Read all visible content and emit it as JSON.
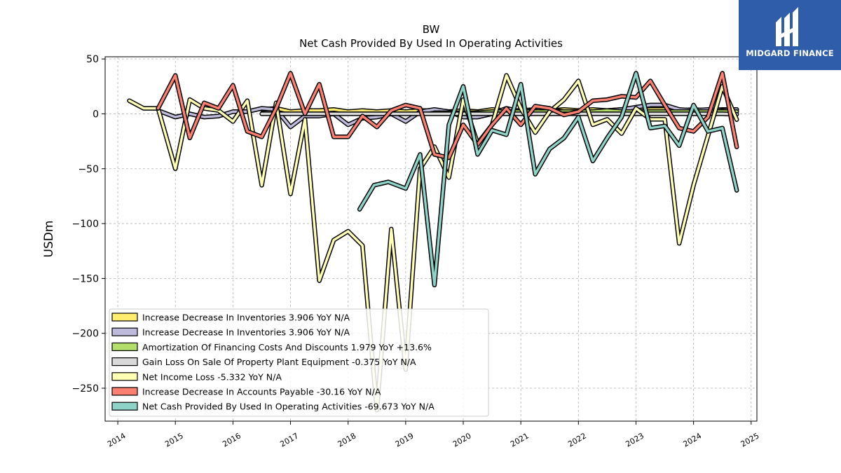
{
  "brand": {
    "name": "MIDGARD FINANCE",
    "bg_color": "#2f5daa"
  },
  "chart_data": {
    "type": "line",
    "title": "BW",
    "subtitle": "Net Cash Provided By Used In Operating Activities",
    "ylabel": "USDm",
    "xlabel": "",
    "ylim": [
      -280,
      52
    ],
    "xlim": [
      2013.78,
      2025.1
    ],
    "x_ticks": [
      2014,
      2015,
      2016,
      2017,
      2018,
      2019,
      2020,
      2021,
      2022,
      2023,
      2024,
      2025
    ],
    "y_ticks": [
      50,
      0,
      -50,
      -100,
      -150,
      -200,
      -250
    ],
    "grid": true,
    "legend_position": "lower-left",
    "series": [
      {
        "name": "Increase Decrease In Inventories  3.906 YoY N/A",
        "color": "#ffed6f",
        "x": [
          2016.5,
          2016.75,
          2017.0,
          2017.25,
          2017.5,
          2017.75,
          2018.0,
          2018.25,
          2018.5,
          2018.75,
          2019.0,
          2019.25,
          2019.5,
          2019.75,
          2020.0,
          2020.25,
          2020.5,
          2020.75,
          2021.0,
          2021.25,
          2021.5,
          2021.75,
          2022.0,
          2022.25,
          2022.5,
          2022.75,
          2023.0,
          2023.25,
          2023.5,
          2023.75,
          2024.0,
          2024.25,
          2024.5,
          2024.75
        ],
        "y": [
          4,
          5,
          2,
          3,
          3,
          4,
          2,
          3,
          2,
          3,
          2,
          3,
          3,
          2,
          3,
          2,
          4,
          3,
          3,
          4,
          3,
          4,
          3,
          4,
          3,
          4,
          3,
          4,
          4,
          3,
          4,
          3,
          4,
          3.9
        ]
      },
      {
        "name": "Increase Decrease In Inventories  3.906 YoY N/A",
        "color": "#bebada",
        "x": [
          2014.75,
          2015.0,
          2015.25,
          2015.5,
          2015.75,
          2016.0,
          2016.25,
          2016.5,
          2016.75,
          2017.0,
          2017.25,
          2017.5,
          2017.75,
          2018.0,
          2018.25,
          2018.5,
          2018.75,
          2019.0,
          2019.25,
          2019.5,
          2019.75,
          2020.0,
          2020.25,
          2020.5,
          2020.75,
          2021.0,
          2021.25,
          2021.5,
          2021.75,
          2022.0,
          2022.25,
          2022.5,
          2022.75,
          2023.0,
          2023.25,
          2023.5,
          2023.75,
          2024.0,
          2024.25,
          2024.5,
          2024.75
        ],
        "y": [
          2,
          -3,
          0,
          -3,
          -2,
          2,
          2,
          5,
          4,
          -12,
          -2,
          -2,
          0,
          -10,
          -4,
          -3,
          0,
          -7,
          2,
          4,
          2,
          -3,
          -3,
          0,
          5,
          2,
          3,
          4,
          2,
          0,
          1,
          3,
          4,
          6,
          8,
          8,
          4,
          3,
          4,
          3,
          3.9
        ]
      },
      {
        "name": "Amortization Of Financing Costs And Discounts  1.979 YoY +13.6%",
        "color": "#b3de69",
        "x": [
          2019.5,
          2019.75,
          2020.0,
          2020.25,
          2020.5,
          2020.75,
          2021.0,
          2021.25,
          2021.5,
          2021.75,
          2022.0,
          2022.25,
          2022.5,
          2022.75,
          2023.0,
          2023.25,
          2023.5,
          2023.75,
          2024.0,
          2024.25,
          2024.5,
          2024.75
        ],
        "y": [
          1,
          1,
          1,
          1,
          2,
          2,
          2,
          2,
          2,
          2,
          2,
          2,
          3,
          2,
          2,
          2,
          2,
          2,
          2,
          2,
          2,
          2.0
        ]
      },
      {
        "name": "Gain Loss On Sale Of Property Plant Equipment  -0.375 YoY N/A",
        "color": "#d9d9d9",
        "x": [
          2016.5,
          2016.75,
          2017.0,
          2017.25,
          2017.5,
          2017.75,
          2018.0,
          2018.25,
          2018.5,
          2018.75,
          2019.0,
          2019.25,
          2019.5,
          2019.75,
          2020.0,
          2020.25,
          2020.5,
          2020.75,
          2021.0,
          2021.25,
          2021.5,
          2021.75,
          2022.0,
          2022.25,
          2022.5,
          2022.75,
          2023.0,
          2023.25,
          2023.5,
          2023.75,
          2024.0,
          2024.25,
          2024.5,
          2024.75
        ],
        "y": [
          0,
          0,
          0,
          0,
          0,
          0,
          0,
          0,
          0,
          0,
          0,
          0,
          0,
          0,
          0,
          0,
          0,
          0,
          0,
          0,
          0,
          0,
          0,
          0,
          0,
          0,
          0,
          0,
          0,
          0,
          0,
          0,
          0,
          -0.4
        ]
      },
      {
        "name": "Net Income Loss  -5.332 YoY N/A",
        "color": "#ffffb3",
        "x": [
          2014.2,
          2014.45,
          2014.7,
          2015.0,
          2015.25,
          2015.5,
          2015.75,
          2016.0,
          2016.25,
          2016.5,
          2016.75,
          2017.0,
          2017.25,
          2017.5,
          2017.75,
          2018.0,
          2018.25,
          2018.5,
          2018.75,
          2019.0,
          2019.25,
          2019.5,
          2019.75,
          2020.0,
          2020.25,
          2020.5,
          2020.75,
          2021.0,
          2021.25,
          2021.5,
          2021.75,
          2022.0,
          2022.25,
          2022.5,
          2022.75,
          2023.0,
          2023.25,
          2023.5,
          2023.75,
          2024.0,
          2024.25,
          2024.5,
          2024.75
        ],
        "y": [
          12,
          5,
          5,
          -50,
          13,
          5,
          3,
          -7,
          12,
          -65,
          10,
          -73,
          -5,
          -152,
          -115,
          -107,
          -120,
          -270,
          -105,
          -233,
          -50,
          -30,
          -58,
          13,
          -27,
          -10,
          35,
          5,
          -17,
          2,
          13,
          30,
          -10,
          -5,
          -18,
          5,
          -5,
          -5,
          -118,
          -65,
          -20,
          25,
          -5.3
        ]
      },
      {
        "name": "Increase Decrease In Accounts Payable  -30.16 YoY N/A",
        "color": "#fb8072",
        "x": [
          2014.7,
          2015.0,
          2015.25,
          2015.5,
          2015.75,
          2016.0,
          2016.25,
          2016.5,
          2016.75,
          2017.0,
          2017.25,
          2017.5,
          2017.75,
          2018.0,
          2018.25,
          2018.5,
          2018.75,
          2019.0,
          2019.25,
          2019.5,
          2019.75,
          2020.0,
          2020.25,
          2020.5,
          2020.75,
          2021.0,
          2021.25,
          2021.5,
          2021.75,
          2022.0,
          2022.25,
          2022.5,
          2022.75,
          2023.0,
          2023.25,
          2023.5,
          2023.75,
          2024.0,
          2024.25,
          2024.5,
          2024.75
        ],
        "y": [
          5,
          35,
          -22,
          10,
          5,
          26,
          -16,
          -21,
          5,
          37,
          0,
          27,
          -21,
          -21,
          -2,
          -12,
          3,
          8,
          5,
          -37,
          -40,
          -10,
          -28,
          -10,
          5,
          -10,
          7,
          5,
          -1,
          2,
          12,
          13,
          16,
          15,
          30,
          8,
          -13,
          -16,
          -3,
          37,
          -30.2
        ]
      },
      {
        "name": "Net Cash Provided By Used In Operating Activities  -69.673 YoY N/A",
        "color": "#8dd3c7",
        "x": [
          2018.2,
          2018.45,
          2018.7,
          2019.0,
          2019.25,
          2019.5,
          2019.75,
          2020.0,
          2020.25,
          2020.5,
          2020.75,
          2021.0,
          2021.25,
          2021.5,
          2021.75,
          2022.0,
          2022.25,
          2022.5,
          2022.75,
          2023.0,
          2023.25,
          2023.5,
          2023.75,
          2024.0,
          2024.25,
          2024.5,
          2024.75
        ],
        "y": [
          -87,
          -65,
          -62,
          -68,
          -37,
          -156,
          -10,
          25,
          -37,
          -15,
          -19,
          27,
          -55,
          -32,
          -22,
          -3,
          -43,
          -22,
          -3,
          37,
          -13,
          -11,
          -29,
          8,
          -16,
          -13,
          -69.7
        ]
      }
    ]
  }
}
